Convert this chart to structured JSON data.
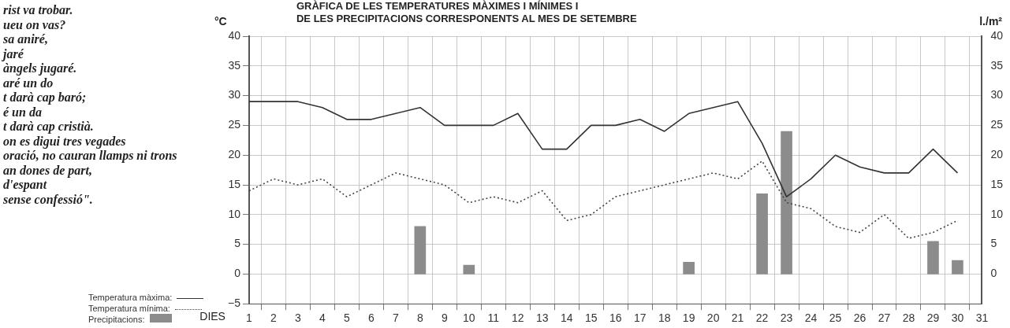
{
  "chart_data": {
    "type": "line",
    "title": "GRÀFICA DE LES TEMPERATURES MÀXIMES I MÍNIMES I\nDE LES PRECIPITACIONS CORRESPONENTS AL MES DE SETEMBRE",
    "xlabel": "DIES",
    "ylabel": "°C",
    "y2label": "l./m²",
    "x": [
      1,
      2,
      3,
      4,
      5,
      6,
      7,
      8,
      9,
      10,
      11,
      12,
      13,
      14,
      15,
      16,
      17,
      18,
      19,
      20,
      21,
      22,
      23,
      24,
      25,
      26,
      27,
      28,
      29,
      30
    ],
    "series": [
      {
        "name": "Temperatura màxima:",
        "color": "#333333",
        "line_style": "solid",
        "values": [
          29,
          29,
          29,
          28,
          26,
          26,
          27,
          28,
          25,
          25,
          25,
          27,
          21,
          21,
          25,
          25,
          26,
          24,
          27,
          28,
          29,
          22,
          13,
          16,
          20,
          18,
          17,
          17,
          21,
          17
        ]
      },
      {
        "name": "Temperatura mínima:",
        "color": "#444444",
        "line_style": "dotted",
        "values": [
          14,
          16,
          15,
          16,
          13,
          15,
          17,
          16,
          15,
          12,
          13,
          12,
          14,
          9,
          10,
          13,
          14,
          15,
          16,
          17,
          16,
          19,
          12,
          11,
          8,
          7,
          10,
          6,
          7,
          9
        ]
      },
      {
        "name": "Precipitacions:",
        "type": "bar",
        "axis": "y2",
        "color": "#8c8c8c",
        "x": [
          8,
          10,
          19,
          22,
          23,
          29,
          30
        ],
        "values": [
          8,
          1.5,
          2,
          13.5,
          24,
          5.5,
          2.3
        ]
      }
    ],
    "xlim": [
      1,
      31
    ],
    "xticks": [
      1,
      2,
      3,
      4,
      5,
      6,
      7,
      8,
      9,
      10,
      11,
      12,
      13,
      14,
      15,
      16,
      17,
      18,
      19,
      20,
      21,
      22,
      23,
      24,
      25,
      26,
      27,
      28,
      29,
      30,
      31
    ],
    "ylim": [
      -5,
      40
    ],
    "yticks": [
      -5,
      0,
      5,
      10,
      15,
      20,
      25,
      30,
      35,
      40
    ],
    "y2lim": [
      -5,
      40
    ],
    "y2ticks": [
      0,
      5,
      10,
      15,
      20,
      25,
      30,
      35,
      40
    ],
    "grid": true,
    "legend": "bottom left",
    "marker": "none",
    "annotations": [
      "rist va trobar.",
      "ueu on vas?",
      "sa aniré,",
      "jaré",
      "àngels jugaré.",
      "aré un do",
      "t darà cap baró;",
      "é un da",
      "t darà cap cristià.",
      "on es digui tres vegades",
      "oració, no cauran llamps ni trons",
      "an dones de part,",
      "d'espant",
      "sense confessió\"."
    ]
  }
}
